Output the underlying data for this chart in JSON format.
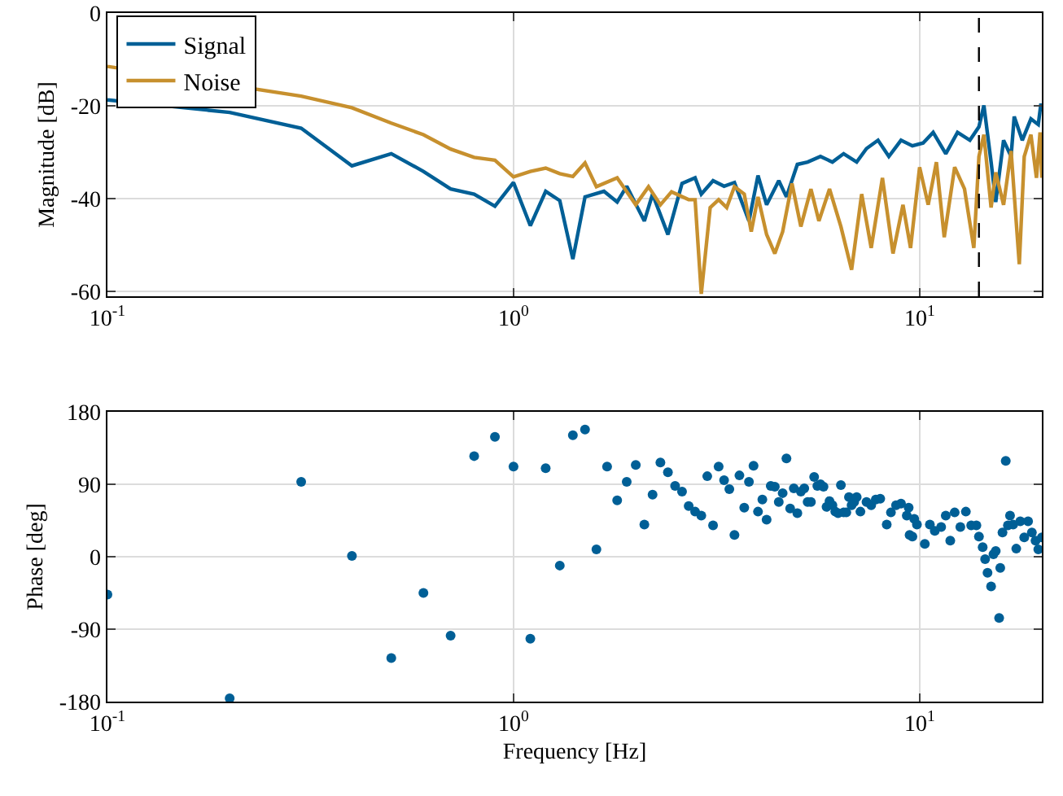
{
  "chart_data": [
    {
      "type": "line",
      "ylabel": "Magnitude [dB]",
      "log": "x",
      "grid": true,
      "legend": "top left",
      "line_style": "solid",
      "xlim": [
        0.1,
        20
      ],
      "xticks": [
        {
          "value": 0.1,
          "label": "10$^{-1}$"
        },
        {
          "value": 1,
          "label": "10$^{0}$"
        },
        {
          "value": 10,
          "label": "10$^{1}$"
        }
      ],
      "ylim": [
        -61,
        0
      ],
      "yticks": [
        -60,
        -40,
        -20,
        0
      ],
      "ref_lines": [
        {
          "axis": "x",
          "value": 14,
          "label": null,
          "color": "#000000",
          "line_style": "dashed"
        }
      ],
      "series": [
        {
          "name": "Signal",
          "color": "#005f96",
          "x": [
            0.1,
            0.2,
            0.3,
            0.4,
            0.5,
            0.6,
            0.7,
            0.8,
            0.9,
            1.0,
            1.1,
            1.2,
            1.3,
            1.4,
            1.5,
            1.67,
            1.8,
            1.9,
            2.1,
            2.2,
            2.4,
            2.6,
            2.8,
            2.9,
            3.1,
            3.3,
            3.5,
            3.8,
            4.0,
            4.2,
            4.5,
            4.7,
            5.0,
            5.3,
            5.7,
            6.1,
            6.5,
            7.0,
            7.4,
            7.9,
            8.4,
            9.0,
            9.6,
            10.2,
            10.8,
            11.6,
            12.4,
            13.3,
            14.0,
            14.4,
            15.0,
            15.4,
            16.1,
            16.8,
            17.1,
            17.9,
            18.8,
            19.6,
            19.9,
            20
          ],
          "values": [
            -18.7,
            -21.4,
            -24.8,
            -32.9,
            -30.3,
            -34.1,
            -37.9,
            -39.0,
            -41.6,
            -36.5,
            -45.8,
            -38.4,
            -40.4,
            -53.0,
            -39.6,
            -38.4,
            -40.7,
            -37.3,
            -44.8,
            -39.0,
            -47.7,
            -36.7,
            -35.5,
            -39.0,
            -36.1,
            -37.3,
            -36.5,
            -44.8,
            -35.0,
            -41.3,
            -36.1,
            -39.6,
            -32.6,
            -32.1,
            -30.9,
            -32.1,
            -30.3,
            -32.1,
            -29.2,
            -27.4,
            -30.9,
            -27.4,
            -28.6,
            -28.0,
            -25.7,
            -30.3,
            -25.7,
            -27.4,
            -24.5,
            -19.9,
            -32.1,
            -40.7,
            -27.4,
            -30.9,
            -22.3,
            -27.4,
            -22.8,
            -24.0,
            -19.5,
            -21.3
          ]
        },
        {
          "name": "Noise",
          "color": "#c7902e",
          "x": [
            0.1,
            0.2,
            0.3,
            0.4,
            0.5,
            0.6,
            0.7,
            0.8,
            0.9,
            1.0,
            1.1,
            1.2,
            1.3,
            1.4,
            1.5,
            1.6,
            1.8,
            2.0,
            2.15,
            2.3,
            2.45,
            2.7,
            2.8,
            2.9,
            3.05,
            3.2,
            3.35,
            3.5,
            3.7,
            3.85,
            4.0,
            4.2,
            4.4,
            4.6,
            4.85,
            5.1,
            5.4,
            5.65,
            6.0,
            6.4,
            6.8,
            7.2,
            7.6,
            8.1,
            8.6,
            9.1,
            9.5,
            10.0,
            10.5,
            11.0,
            11.5,
            12.2,
            12.9,
            13.6,
            14.0,
            14.4,
            15.0,
            15.4,
            16.1,
            16.8,
            17.6,
            18.1,
            18.8,
            19.4,
            19.8,
            20
          ],
          "values": [
            -11.5,
            null,
            -17.9,
            -20.4,
            -23.7,
            -26.2,
            -29.3,
            -31.1,
            -31.7,
            -35.3,
            -34.1,
            -33.4,
            -34.6,
            -35.2,
            -32.3,
            -37.4,
            -35.5,
            -41.3,
            -37.4,
            -41.3,
            -38.5,
            -40.2,
            -40.2,
            -60.5,
            -41.9,
            -40.2,
            -41.9,
            -37.4,
            -39.0,
            -47.1,
            -39.6,
            -47.7,
            -51.8,
            -47.1,
            -36.7,
            -46.0,
            -37.9,
            -44.8,
            -37.9,
            -46.0,
            -55.3,
            -39.0,
            -50.6,
            -35.5,
            -51.8,
            -41.3,
            -50.6,
            -33.2,
            -41.3,
            -32.1,
            -48.3,
            -33.2,
            -37.9,
            -50.6,
            -30.9,
            -26.2,
            -41.9,
            -34.3,
            -41.3,
            -29.7,
            -54.1,
            -30.9,
            -26.2,
            -35.5,
            -25.7,
            -35.5
          ]
        }
      ]
    },
    {
      "type": "scatter",
      "ylabel": "Phase [deg]",
      "xlabel": "Frequency [Hz]",
      "log": "x",
      "grid": true,
      "marker": "circle",
      "xlim": [
        0.1,
        20
      ],
      "xticks": [
        {
          "value": 0.1,
          "label": "10$^{-1}$"
        },
        {
          "value": 1,
          "label": "10$^{0}$"
        },
        {
          "value": 10,
          "label": "10$^{1}$"
        }
      ],
      "ylim": [
        -180,
        180
      ],
      "yticks": [
        -180,
        -90,
        0,
        90,
        180
      ],
      "series": [
        {
          "color": "#005f96",
          "x": [
            0.1,
            0.2,
            0.3,
            0.4,
            0.5,
            0.6,
            0.7,
            0.8,
            0.9,
            1.0,
            1.1,
            1.2,
            1.3,
            1.4,
            1.5,
            1.6,
            1.7,
            1.8,
            1.9,
            2.0,
            2.1,
            2.2,
            2.3,
            2.4,
            2.5,
            2.6,
            2.7,
            2.8,
            2.9,
            3.0,
            3.1,
            3.2,
            3.3,
            3.4,
            3.5,
            3.6,
            3.7,
            3.8,
            3.9,
            4.0,
            4.1,
            4.2,
            4.3,
            4.4,
            4.5,
            4.6,
            4.7,
            4.8,
            4.9,
            5.0,
            5.1,
            5.2,
            5.3,
            5.4,
            5.5,
            5.6,
            5.7,
            5.8,
            5.9,
            6.0,
            6.1,
            6.2,
            6.3,
            6.4,
            6.5,
            6.6,
            6.7,
            6.8,
            6.9,
            7.0,
            7.15,
            7.4,
            7.6,
            7.8,
            8.0,
            8.3,
            8.5,
            8.75,
            9.0,
            9.3,
            9.4,
            9.7,
            9.45,
            9.6,
            9.85,
            10.3,
            10.6,
            10.9,
            11.3,
            11.6,
            11.9,
            12.2,
            12.6,
            13.0,
            13.4,
            13.8,
            14.0,
            14.3,
            14.5,
            14.7,
            15.0,
            15.2,
            15.4,
            15.7,
            15.8,
            16.0,
            16.3,
            16.5,
            16.7,
            17.0,
            17.3,
            17.7,
            18.1,
            18.5,
            18.9,
            19.3,
            19.6,
            20
          ],
          "values": [
            -47,
            -176,
            93,
            1,
            -126,
            -45,
            -98,
            125,
            149,
            112,
            -102,
            110,
            -11,
            151,
            158,
            9,
            112,
            70,
            93,
            114,
            40,
            77,
            117,
            105,
            88,
            81,
            63,
            56,
            51,
            100,
            39,
            112,
            95,
            84,
            27,
            101,
            61,
            93,
            113,
            56,
            71,
            46,
            88,
            87,
            68,
            79,
            122,
            60,
            85,
            54,
            81,
            85,
            68,
            68,
            99,
            88,
            90,
            87,
            62,
            69,
            64,
            56,
            54,
            89,
            55,
            55,
            74,
            64,
            68,
            74,
            56,
            68,
            64,
            71,
            72,
            40,
            55,
            64,
            66,
            51,
            61,
            47,
            27,
            25,
            40,
            16,
            40,
            32,
            37,
            51,
            20,
            55,
            37,
            56,
            39,
            39,
            25,
            12,
            -3,
            -20,
            -37,
            3,
            7,
            -76,
            -14,
            30,
            119,
            39,
            51,
            40,
            10,
            44,
            24,
            44,
            30,
            20,
            9,
            24
          ]
        }
      ]
    }
  ]
}
